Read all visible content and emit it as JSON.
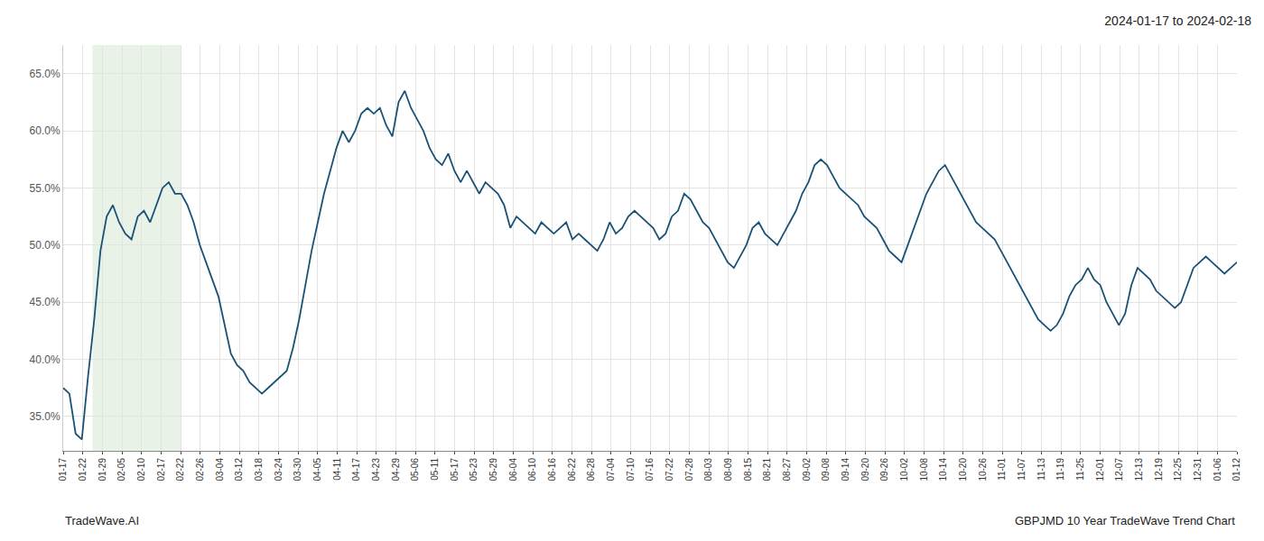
{
  "chart_data": {
    "type": "line",
    "title": "2024-01-17 to 2024-02-18",
    "annotations": [
      "TradeWave.AI",
      "GBPJMD 10 Year TradeWave Trend Chart"
    ],
    "color": "#1a5276",
    "grid": true,
    "xlim": [
      0,
      60
    ],
    "xticks": [
      {
        "value": 0,
        "label": "01-17"
      },
      {
        "value": 1,
        "label": "01-22"
      },
      {
        "value": 2,
        "label": "01-29"
      },
      {
        "value": 3,
        "label": "02-05"
      },
      {
        "value": 4,
        "label": "02-10"
      },
      {
        "value": 5,
        "label": "02-17"
      },
      {
        "value": 6,
        "label": "02-22"
      },
      {
        "value": 7,
        "label": "02-26"
      },
      {
        "value": 8,
        "label": "03-04"
      },
      {
        "value": 9,
        "label": "03-12"
      },
      {
        "value": 10,
        "label": "03-18"
      },
      {
        "value": 11,
        "label": "03-24"
      },
      {
        "value": 12,
        "label": "03-30"
      },
      {
        "value": 13,
        "label": "04-05"
      },
      {
        "value": 14,
        "label": "04-11"
      },
      {
        "value": 15,
        "label": "04-17"
      },
      {
        "value": 16,
        "label": "04-23"
      },
      {
        "value": 17,
        "label": "04-29"
      },
      {
        "value": 18,
        "label": "05-06"
      },
      {
        "value": 19,
        "label": "05-11"
      },
      {
        "value": 20,
        "label": "05-17"
      },
      {
        "value": 21,
        "label": "05-23"
      },
      {
        "value": 22,
        "label": "05-29"
      },
      {
        "value": 23,
        "label": "06-04"
      },
      {
        "value": 24,
        "label": "06-10"
      },
      {
        "value": 25,
        "label": "06-16"
      },
      {
        "value": 26,
        "label": "06-22"
      },
      {
        "value": 27,
        "label": "06-28"
      },
      {
        "value": 28,
        "label": "07-04"
      },
      {
        "value": 29,
        "label": "07-10"
      },
      {
        "value": 30,
        "label": "07-16"
      },
      {
        "value": 31,
        "label": "07-22"
      },
      {
        "value": 32,
        "label": "07-28"
      },
      {
        "value": 33,
        "label": "08-03"
      },
      {
        "value": 34,
        "label": "08-09"
      },
      {
        "value": 35,
        "label": "08-15"
      },
      {
        "value": 36,
        "label": "08-21"
      },
      {
        "value": 37,
        "label": "08-27"
      },
      {
        "value": 38,
        "label": "09-02"
      },
      {
        "value": 39,
        "label": "09-08"
      },
      {
        "value": 40,
        "label": "09-14"
      },
      {
        "value": 41,
        "label": "09-20"
      },
      {
        "value": 42,
        "label": "09-26"
      },
      {
        "value": 43,
        "label": "10-02"
      },
      {
        "value": 44,
        "label": "10-08"
      },
      {
        "value": 45,
        "label": "10-14"
      },
      {
        "value": 46,
        "label": "10-20"
      },
      {
        "value": 47,
        "label": "10-26"
      },
      {
        "value": 48,
        "label": "11-01"
      },
      {
        "value": 49,
        "label": "11-07"
      },
      {
        "value": 50,
        "label": "11-13"
      },
      {
        "value": 51,
        "label": "11-19"
      },
      {
        "value": 52,
        "label": "11-25"
      },
      {
        "value": 53,
        "label": "12-01"
      },
      {
        "value": 54,
        "label": "12-07"
      },
      {
        "value": 55,
        "label": "12-13"
      },
      {
        "value": 56,
        "label": "12-19"
      },
      {
        "value": 57,
        "label": "12-25"
      },
      {
        "value": 58,
        "label": "12-31"
      },
      {
        "value": 59,
        "label": "01-06"
      },
      {
        "value": 60,
        "label": "01-12"
      }
    ],
    "ylim": [
      32.0,
      67.5
    ],
    "yticks": [
      {
        "value": 35.0,
        "label": "35.0%"
      },
      {
        "value": 40.0,
        "label": "40.0%"
      },
      {
        "value": 45.0,
        "label": "45.0%"
      },
      {
        "value": 50.0,
        "label": "50.0%"
      },
      {
        "value": 55.0,
        "label": "55.0%"
      },
      {
        "value": 60.0,
        "label": "60.0%"
      },
      {
        "value": 65.0,
        "label": "65.0%"
      }
    ],
    "shade": {
      "x": [
        1.5,
        6.0
      ],
      "color": "#d5e8d4"
    },
    "x": [
      0,
      0.3175,
      0.6349,
      0.9524,
      1.2698,
      1.5873,
      1.9048,
      2.2222,
      2.5397,
      2.8571,
      3.1746,
      3.4921,
      3.8095,
      4.127,
      4.4444,
      4.7619,
      5.0794,
      5.3968,
      5.7143,
      6.0317,
      6.3492,
      6.6667,
      6.9841,
      7.3016,
      7.619,
      7.9365,
      8.254,
      8.5714,
      8.8889,
      9.2063,
      9.5238,
      9.8413,
      10.1587,
      10.4762,
      10.7937,
      11.1111,
      11.4286,
      11.746,
      12.0635,
      12.381,
      12.6984,
      13.0159,
      13.3333,
      13.6508,
      13.9683,
      14.2857,
      14.6032,
      14.9206,
      15.2381,
      15.5556,
      15.873,
      16.1905,
      16.5079,
      16.8254,
      17.1429,
      17.4603,
      17.7778,
      18.0952,
      18.4127,
      18.7302,
      19.0476,
      19.3651,
      19.6825,
      20,
      20.3175,
      20.6349,
      20.9524,
      21.2698,
      21.5873,
      21.9048,
      22.2222,
      22.5397,
      22.8571,
      23.1746,
      23.4921,
      23.8095,
      24.127,
      24.4444,
      24.7619,
      25.0794,
      25.3968,
      25.7143,
      26.0317,
      26.3492,
      26.6667,
      26.9841,
      27.3016,
      27.619,
      27.9365,
      28.254,
      28.5714,
      28.8889,
      29.2063,
      29.5238,
      29.8413,
      30.1587,
      30.4762,
      30.7937,
      31.1111,
      31.4286,
      31.746,
      32.0635,
      32.381,
      32.6984,
      33.0159,
      33.3333,
      33.6508,
      33.9683,
      34.2857,
      34.6032,
      34.9206,
      35.2381,
      35.5556,
      35.873,
      36.1905,
      36.5079,
      36.8254,
      37.1429,
      37.4603,
      37.7778,
      38.0952,
      38.4127,
      38.7302,
      39.0476,
      39.3651,
      39.6825,
      40,
      40.3175,
      40.6349,
      40.9524,
      41.2698,
      41.5873,
      41.9048,
      42.2222,
      42.5397,
      42.8571,
      43.1746,
      43.4921,
      43.8095,
      44.127,
      44.4444,
      44.7619,
      45.0794,
      45.3968,
      45.7143,
      46.0317,
      46.3492,
      46.6667,
      46.9841,
      47.3016,
      47.619,
      47.9365,
      48.254,
      48.5714,
      48.8889,
      49.2063,
      49.5238,
      49.8413,
      50.1587,
      50.4762,
      50.7937,
      51.1111,
      51.4286,
      51.746,
      52.0635,
      52.381,
      52.6984,
      53.0159,
      53.3333,
      53.6508,
      53.9683,
      54.2857,
      54.6032,
      54.9206,
      55.2381,
      55.5556,
      55.873,
      56.1905,
      56.5079,
      56.8254,
      57.1429,
      57.4603,
      57.7778,
      58.0952,
      58.4127,
      58.7302,
      59.0476,
      59.3651,
      59.6825,
      60
    ],
    "values": [
      37.5,
      37.0,
      33.5,
      33.0,
      38.5,
      43.5,
      49.5,
      52.5,
      53.5,
      52.0,
      51.0,
      50.5,
      52.5,
      53.0,
      52.0,
      53.5,
      55.0,
      55.5,
      54.5,
      54.5,
      53.5,
      52.0,
      50.0,
      48.5,
      47.0,
      45.5,
      43.0,
      40.5,
      39.5,
      39.0,
      38.0,
      37.5,
      37.0,
      37.5,
      38.0,
      38.5,
      39.0,
      41.0,
      43.5,
      46.5,
      49.5,
      52.0,
      54.5,
      56.5,
      58.5,
      60.0,
      59.0,
      60.0,
      61.5,
      62.0,
      61.5,
      62.0,
      60.5,
      59.5,
      62.5,
      63.5,
      62.0,
      61.0,
      60.0,
      58.5,
      57.5,
      57.0,
      58.0,
      56.5,
      55.5,
      56.5,
      55.5,
      54.5,
      55.5,
      55.0,
      54.5,
      53.5,
      51.5,
      52.5,
      52.0,
      51.5,
      51.0,
      52.0,
      51.5,
      51.0,
      51.5,
      52.0,
      50.5,
      51.0,
      50.5,
      50.0,
      49.5,
      50.5,
      52.0,
      51.0,
      51.5,
      52.5,
      53.0,
      52.5,
      52.0,
      51.5,
      50.5,
      51.0,
      52.5,
      53.0,
      54.5,
      54.0,
      53.0,
      52.0,
      51.5,
      50.5,
      49.5,
      48.5,
      48.0,
      49.0,
      50.0,
      51.5,
      52.0,
      51.0,
      50.5,
      50.0,
      51.0,
      52.0,
      53.0,
      54.5,
      55.5,
      57.0,
      57.5,
      57.0,
      56.0,
      55.0,
      54.5,
      54.0,
      53.5,
      52.5,
      52.0,
      51.5,
      50.5,
      49.5,
      49.0,
      48.5,
      50.0,
      51.5,
      53.0,
      54.5,
      55.5,
      56.5,
      57.0,
      56.0,
      55.0,
      54.0,
      53.0,
      52.0,
      51.5,
      51.0,
      50.5,
      49.5,
      48.5,
      47.5,
      46.5,
      45.5,
      44.5,
      43.5,
      43.0,
      42.5,
      43.0,
      44.0,
      45.5,
      46.5,
      47.0,
      48.0,
      47.0,
      46.5,
      45.0,
      44.0,
      43.0,
      44.0,
      46.5,
      48.0,
      47.5,
      47.0,
      46.0,
      45.5,
      45.0,
      44.5,
      45.0,
      46.5,
      48.0,
      48.5,
      49.0,
      48.5,
      48.0,
      47.5,
      48.0,
      48.5
    ]
  }
}
